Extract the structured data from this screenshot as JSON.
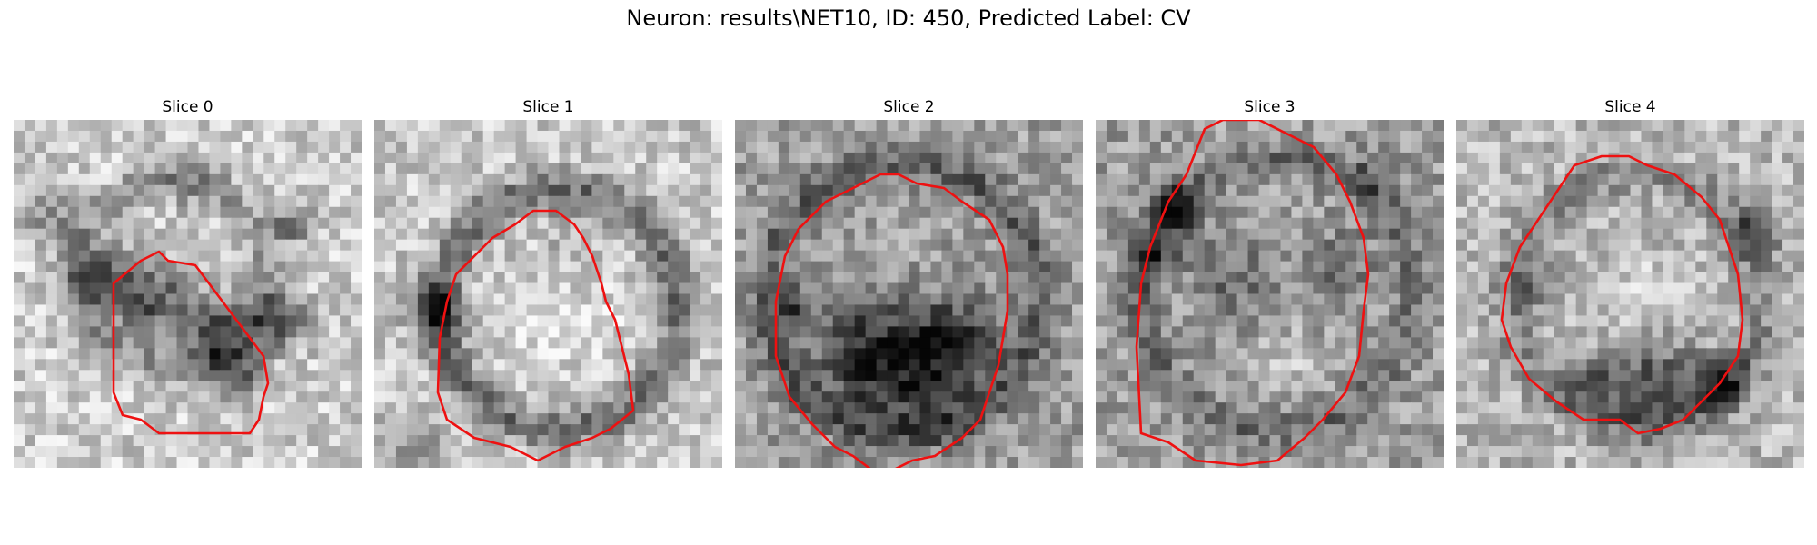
{
  "figure": {
    "title": "Neuron: results\\NET10, ID: 450, Predicted Label: CV"
  },
  "panels": [
    {
      "title": "Slice 0"
    },
    {
      "title": "Slice 1"
    },
    {
      "title": "Slice 2"
    },
    {
      "title": "Slice 3"
    },
    {
      "title": "Slice 4"
    }
  ],
  "colors": {
    "contour": "#ee1111",
    "background": "#ffffff"
  }
}
